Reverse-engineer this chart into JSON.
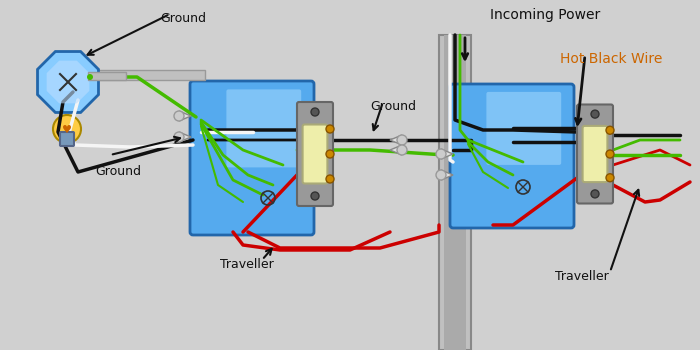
{
  "bg_color": "#d0d0d0",
  "labels": {
    "ground_top": "Ground",
    "ground_bottom": "Ground",
    "incoming_power": "Incoming Power",
    "hot_black_wire": "Hot Black Wire",
    "traveller_left": "Traveller",
    "traveller_right": "Traveller",
    "ground_middle": "Ground"
  },
  "colors": {
    "black_wire": "#111111",
    "white_wire": "#f5f5f5",
    "green_wire": "#44bb00",
    "red_wire": "#cc0000",
    "box_fill_top": "#aaddff",
    "box_fill_bot": "#3399dd",
    "box_stroke": "#2266aa",
    "switch_body": "#eeeeaa",
    "switch_metal": "#999999",
    "conduit_fill": "#c0c0c0",
    "conduit_edge": "#888888",
    "lamp_body": "#55aaee",
    "lamp_bulb": "#ffcc44",
    "lamp_base": "#7799bb",
    "screw": "#cc8800",
    "wire_nut_fill": "#e0e0e0",
    "wire_nut_edge": "#888888",
    "annot_color": "#111111",
    "hot_wire_annot": "#cc6600"
  },
  "layout": {
    "fig_w": 7.0,
    "fig_h": 3.5,
    "dpi": 100,
    "xlim": [
      0,
      700
    ],
    "ylim": [
      0,
      350
    ]
  }
}
